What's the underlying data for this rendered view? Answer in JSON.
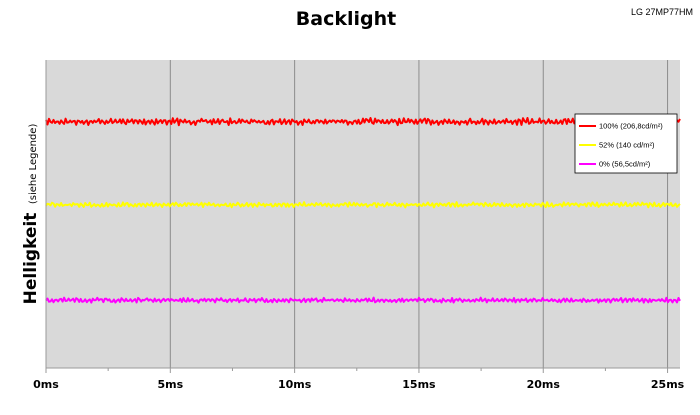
{
  "chart_data": {
    "type": "line",
    "title": "Backlight",
    "subtitle": "LG 27MP77HM",
    "ylabel": "Helligkeit",
    "ylabel_note": "(siehe Legende)",
    "xlabel": "",
    "x_unit": "ms",
    "xlim": [
      0,
      25.5
    ],
    "x_ticks": [
      "0ms",
      "5ms",
      "10ms",
      "15ms",
      "20ms",
      "25ms"
    ],
    "x_tick_values": [
      0,
      5,
      10,
      15,
      20,
      25
    ],
    "ylim": [
      0,
      100
    ],
    "grid": "vertical",
    "background": "#d9d9d9",
    "legend_position": "right",
    "series": [
      {
        "name": "100% (206,8cd/m²)",
        "color": "#ff0000",
        "level": 80,
        "ripple": 3.5
      },
      {
        "name": "52% (140 cd/m²)",
        "color": "#ffff00",
        "level": 53,
        "ripple": 2.5
      },
      {
        "name": "0% (56,5cd/m²)",
        "color": "#ff00ff",
        "level": 22,
        "ripple": 2.5
      }
    ]
  }
}
